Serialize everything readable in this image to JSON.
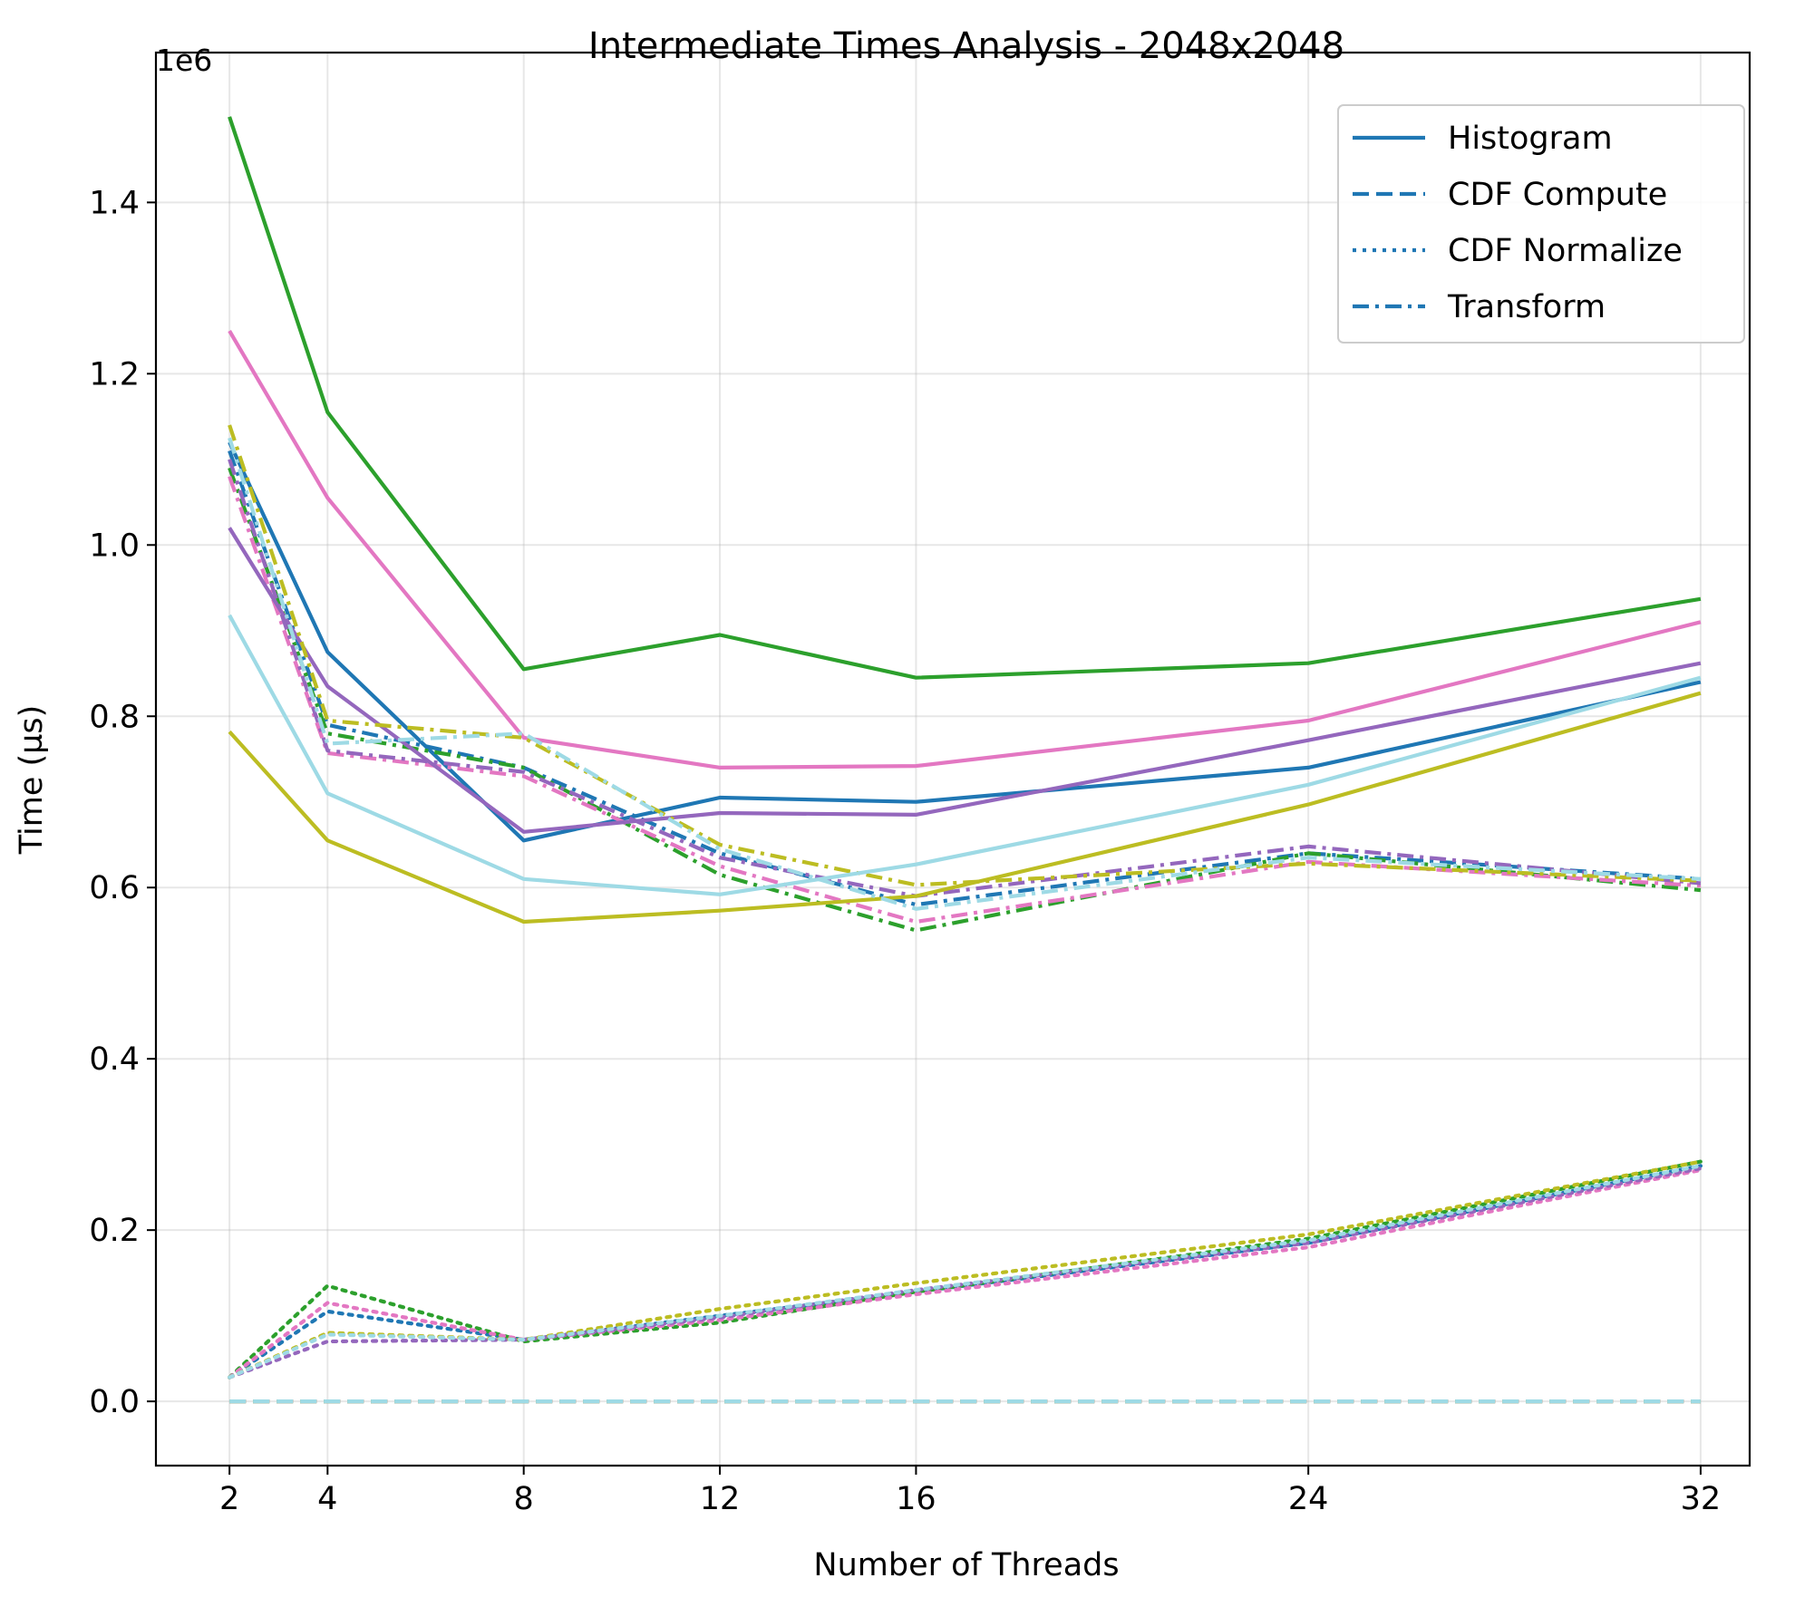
{
  "chart_data": {
    "type": "line",
    "title": "Intermediate Times Analysis - 2048x2048",
    "xlabel": "Number of Threads",
    "ylabel": "Time (µs)",
    "y_offset_label": "1e6",
    "x": [
      2,
      4,
      8,
      12,
      16,
      24,
      32
    ],
    "xticks": [
      "2",
      "4",
      "8",
      "12",
      "16",
      "24",
      "32"
    ],
    "xlim": [
      0.5,
      33
    ],
    "ylim": [
      -0.075,
      1.575
    ],
    "yticks": [
      0.0,
      0.2,
      0.4,
      0.6,
      0.8,
      1.0,
      1.2,
      1.4
    ],
    "ytick_labels": [
      "0.0",
      "0.2",
      "0.4",
      "0.6",
      "0.8",
      "1.0",
      "1.2",
      "1.4"
    ],
    "y_multiplier": 1000000,
    "grid": true,
    "legend": {
      "position": "top-right",
      "color": "#1f77b4",
      "entries": [
        {
          "label": "Histogram",
          "dash": "solid"
        },
        {
          "label": "CDF Compute",
          "dash": "dashed"
        },
        {
          "label": "CDF Normalize",
          "dash": "dotted"
        },
        {
          "label": "Transform",
          "dash": "dashdot"
        }
      ]
    },
    "series": [
      {
        "color": "#1f77b4",
        "dash": "solid",
        "values": [
          1.12,
          0.875,
          0.655,
          0.705,
          0.7,
          0.74,
          0.84
        ]
      },
      {
        "color": "#1f77b4",
        "dash": "dashed",
        "values": [
          0.0,
          0.0,
          0.0,
          0.0,
          0.0,
          0.0,
          0.0
        ]
      },
      {
        "color": "#1f77b4",
        "dash": "dotted",
        "values": [
          0.028,
          0.105,
          0.072,
          0.1,
          0.128,
          0.185,
          0.275
        ]
      },
      {
        "color": "#1f77b4",
        "dash": "dashdot",
        "values": [
          1.11,
          0.79,
          0.74,
          0.64,
          0.58,
          0.64,
          0.61
        ]
      },
      {
        "color": "#2ca02c",
        "dash": "solid",
        "values": [
          1.5,
          1.155,
          0.855,
          0.895,
          0.845,
          0.862,
          0.937
        ]
      },
      {
        "color": "#2ca02c",
        "dash": "dashed",
        "values": [
          0.0,
          0.0,
          0.0,
          0.0,
          0.0,
          0.0,
          0.0
        ]
      },
      {
        "color": "#2ca02c",
        "dash": "dotted",
        "values": [
          0.028,
          0.135,
          0.07,
          0.092,
          0.128,
          0.19,
          0.28
        ]
      },
      {
        "color": "#2ca02c",
        "dash": "dashdot",
        "values": [
          1.09,
          0.78,
          0.74,
          0.615,
          0.55,
          0.64,
          0.597
        ]
      },
      {
        "color": "#e377c2",
        "dash": "solid",
        "values": [
          1.25,
          1.055,
          0.775,
          0.74,
          0.742,
          0.795,
          0.91
        ]
      },
      {
        "color": "#e377c2",
        "dash": "dashed",
        "values": [
          0.0,
          0.0,
          0.0,
          0.0,
          0.0,
          0.0,
          0.0
        ]
      },
      {
        "color": "#e377c2",
        "dash": "dotted",
        "values": [
          0.028,
          0.115,
          0.072,
          0.095,
          0.125,
          0.18,
          0.27
        ]
      },
      {
        "color": "#e377c2",
        "dash": "dashdot",
        "values": [
          1.08,
          0.757,
          0.73,
          0.625,
          0.56,
          0.63,
          0.602
        ]
      },
      {
        "color": "#9467bd",
        "dash": "solid",
        "values": [
          1.02,
          0.835,
          0.665,
          0.687,
          0.685,
          0.772,
          0.862
        ]
      },
      {
        "color": "#9467bd",
        "dash": "dashed",
        "values": [
          0.0,
          0.0,
          0.0,
          0.0,
          0.0,
          0.0,
          0.0
        ]
      },
      {
        "color": "#9467bd",
        "dash": "dotted",
        "values": [
          0.028,
          0.07,
          0.072,
          0.098,
          0.13,
          0.185,
          0.272
        ]
      },
      {
        "color": "#9467bd",
        "dash": "dashdot",
        "values": [
          1.1,
          0.76,
          0.735,
          0.635,
          0.59,
          0.648,
          0.605
        ]
      },
      {
        "color": "#bcbd22",
        "dash": "solid",
        "values": [
          0.782,
          0.655,
          0.56,
          0.573,
          0.59,
          0.697,
          0.827
        ]
      },
      {
        "color": "#bcbd22",
        "dash": "dashed",
        "values": [
          0.0,
          0.0,
          0.0,
          0.0,
          0.0,
          0.0,
          0.0
        ]
      },
      {
        "color": "#bcbd22",
        "dash": "dotted",
        "values": [
          0.028,
          0.08,
          0.072,
          0.108,
          0.138,
          0.195,
          0.28
        ]
      },
      {
        "color": "#bcbd22",
        "dash": "dashdot",
        "values": [
          1.14,
          0.795,
          0.775,
          0.65,
          0.603,
          0.628,
          0.608
        ]
      },
      {
        "color": "#9edae5",
        "dash": "solid",
        "values": [
          0.918,
          0.71,
          0.61,
          0.592,
          0.627,
          0.72,
          0.845
        ]
      },
      {
        "color": "#9edae5",
        "dash": "dashed",
        "values": [
          0.0,
          0.0,
          0.0,
          0.0,
          0.0,
          0.0,
          0.0
        ]
      },
      {
        "color": "#9edae5",
        "dash": "dotted",
        "values": [
          0.028,
          0.078,
          0.072,
          0.1,
          0.13,
          0.188,
          0.275
        ]
      },
      {
        "color": "#9edae5",
        "dash": "dashdot",
        "values": [
          1.125,
          0.768,
          0.78,
          0.645,
          0.575,
          0.635,
          0.61
        ]
      }
    ]
  }
}
